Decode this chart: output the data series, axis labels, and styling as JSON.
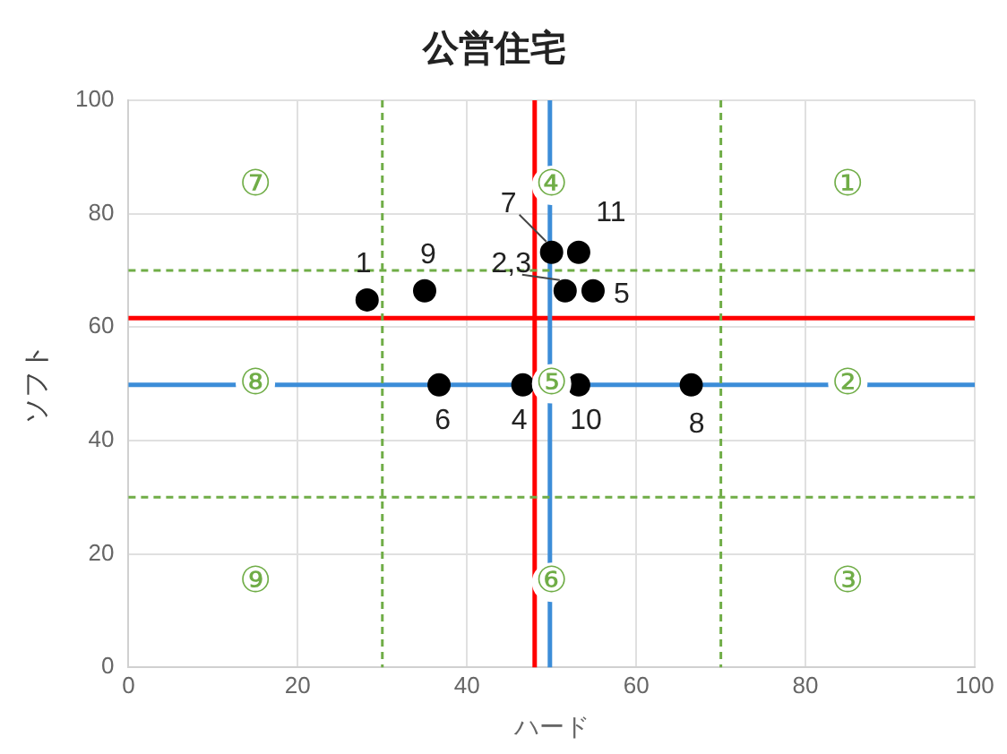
{
  "chart_data": {
    "type": "scatter",
    "title": "公営住宅",
    "xlabel": "ハード",
    "ylabel": "ソフト",
    "x": [
      28.2,
      35.0,
      50.0,
      53.2,
      51.6,
      54.9,
      36.7,
      46.6,
      53.2,
      66.5
    ],
    "values": [
      64.8,
      66.4,
      73.2,
      73.2,
      66.4,
      66.4,
      49.8,
      49.8,
      49.8,
      49.8
    ],
    "color": "#000000",
    "marker": "circle",
    "xlim": [
      0,
      100
    ],
    "ylim": [
      0,
      100
    ],
    "xticks": [
      0,
      20,
      40,
      60,
      80,
      100
    ],
    "yticks": [
      0,
      20,
      40,
      60,
      80,
      100
    ],
    "grid": true,
    "legend": false,
    "ref_lines": [
      {
        "axis": "x",
        "value": 48.0,
        "color": "#ff0000",
        "line_style": "solid"
      },
      {
        "axis": "y",
        "value": 61.6,
        "color": "#ff0000",
        "line_style": "solid"
      },
      {
        "axis": "x",
        "value": 49.8,
        "color": "#3c8dd8",
        "line_style": "solid"
      },
      {
        "axis": "y",
        "value": 49.8,
        "color": "#3c8dd8",
        "line_style": "solid"
      },
      {
        "axis": "x",
        "value": 30,
        "color": "#70ad47",
        "line_style": "dashed"
      },
      {
        "axis": "x",
        "value": 70,
        "color": "#70ad47",
        "line_style": "dashed"
      },
      {
        "axis": "y",
        "value": 70,
        "color": "#70ad47",
        "line_style": "dashed"
      },
      {
        "axis": "y",
        "value": 30,
        "color": "#70ad47",
        "line_style": "dashed"
      }
    ],
    "annotations": [
      {
        "text": "1",
        "x": 28.2,
        "y": 64.8
      },
      {
        "text": "9",
        "x": 35.0,
        "y": 66.4
      },
      {
        "text": "7",
        "x": 50.0,
        "y": 73.2
      },
      {
        "text": "11",
        "x": 53.2,
        "y": 73.2
      },
      {
        "text": "2,3",
        "x": 51.6,
        "y": 66.4
      },
      {
        "text": "5",
        "x": 54.9,
        "y": 66.4
      },
      {
        "text": "6",
        "x": 36.7,
        "y": 49.8
      },
      {
        "text": "4",
        "x": 46.6,
        "y": 49.8
      },
      {
        "text": "10",
        "x": 53.2,
        "y": 49.8
      },
      {
        "text": "8",
        "x": 66.5,
        "y": 49.8
      },
      "⑦",
      "④",
      "①",
      "⑧",
      "⑤",
      "②",
      "⑨",
      "⑥",
      "③"
    ]
  }
}
